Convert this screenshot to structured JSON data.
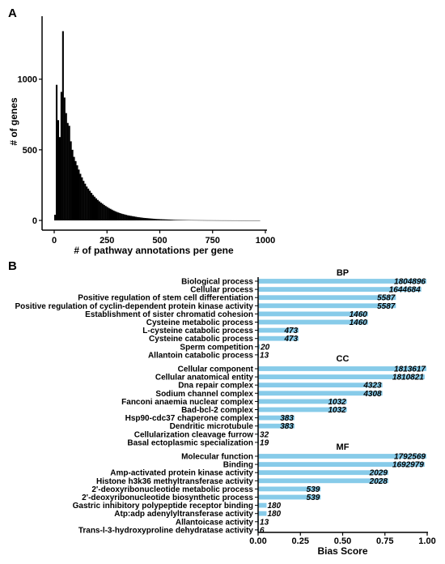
{
  "panels": {
    "a_label": "A",
    "b_label": "B"
  },
  "colors": {
    "hist_bar": "#000000",
    "bias_bar": "#87cbe9",
    "axis": "#000000"
  },
  "chart_data": [
    {
      "type": "bar",
      "subtype": "histogram",
      "title": "",
      "xlabel": "# of pathway annotations per gene",
      "ylabel": "# of genes",
      "xlim": [
        0,
        1000
      ],
      "ylim": [
        0,
        1400
      ],
      "xticks": [
        0,
        250,
        500,
        750,
        1000
      ],
      "yticks": [
        0,
        500,
        1000
      ],
      "bin_width": 7.5,
      "bin_start": 0,
      "values": [
        40,
        960,
        710,
        590,
        910,
        1340,
        870,
        760,
        690,
        670,
        560,
        500,
        450,
        420,
        390,
        360,
        330,
        305,
        280,
        260,
        240,
        225,
        210,
        195,
        180,
        168,
        156,
        145,
        135,
        126,
        118,
        110,
        102,
        95,
        88,
        82,
        76,
        70,
        65,
        60,
        56,
        52,
        48,
        45,
        42,
        39,
        36,
        34,
        32,
        30,
        28,
        26,
        24,
        22.5,
        21,
        19.5,
        18,
        17,
        16,
        15,
        14,
        13,
        12,
        11,
        10,
        9.5,
        9,
        8.5,
        8,
        7.5,
        7,
        6.5,
        6,
        5.5,
        5,
        4.5,
        4,
        3.8,
        3.6,
        3.4,
        3.2,
        3,
        2.8,
        2.6,
        2.4,
        2.2,
        2,
        1.9,
        1.8,
        1.7,
        1.6,
        1.5,
        1.4,
        1.3,
        1.2,
        1.1,
        1,
        1,
        0.9,
        0.9,
        0.8,
        0.8,
        0.7,
        0.7,
        0.6,
        0.6,
        0.5,
        0.5,
        0.5,
        0.4,
        0.4,
        0.4,
        0.3,
        0.3,
        0.3,
        0.3,
        0.2,
        0.2,
        0.2,
        0.2,
        0.2,
        0.1,
        0.1,
        0.1,
        0.1,
        0.1,
        0.1,
        0.1,
        0.1,
        0.1
      ]
    },
    {
      "type": "bar",
      "orientation": "horizontal",
      "title": "",
      "xlabel": "Bias Score",
      "ylabel": "",
      "xlim": [
        0,
        1
      ],
      "xticks": [
        "0.00",
        "0.25",
        "0.50",
        "0.75",
        "1.00"
      ],
      "groups": [
        {
          "name": "BP",
          "categories": [
            "Biological process",
            "Cellular process",
            "Positive regulation of stem cell differentiation",
            "Positive regulation of cyclin-dependent protein kinase activity",
            "Establishment of sister chromatid cohesion",
            "Cysteine metabolic process",
            "L-cysteine catabolic process",
            "Cysteine catabolic process",
            "Sperm competition",
            "Allantoin catabolic process"
          ],
          "values": [
            0.995,
            0.965,
            0.815,
            0.815,
            0.65,
            0.65,
            0.24,
            0.24,
            0.01,
            0.005
          ],
          "labels": [
            "1804896",
            "1644684",
            "5587",
            "5587",
            "1460",
            "1460",
            "473",
            "473",
            "20",
            "13"
          ]
        },
        {
          "name": "CC",
          "categories": [
            "Cellular component",
            "Cellular anatomical entity",
            "Dna repair complex",
            "Sodium channel complex",
            "Fanconi anaemia nuclear complex",
            "Bad-bcl-2 complex",
            "Hsp90-cdc37 chaperone complex",
            "Dendritic microtubule",
            "Cellularization cleavage furrow",
            "Basal ectoplasmic specialization"
          ],
          "values": [
            0.995,
            0.985,
            0.735,
            0.735,
            0.525,
            0.525,
            0.215,
            0.215,
            0.005,
            0.005
          ],
          "labels": [
            "1813617",
            "1810821",
            "4323",
            "4308",
            "1032",
            "1032",
            "383",
            "383",
            "32",
            "19"
          ]
        },
        {
          "name": "MF",
          "categories": [
            "Molecular function",
            "Binding",
            "Amp-activated protein kinase activity",
            "Histone h3k36 methyltransferase activity",
            "2'-deoxyribonucleotide metabolic process",
            "2'-deoxyribonucleotide biosynthetic process",
            "Gastric inhibitory polypeptide receptor binding",
            "Atp:adp adenylyltransferase activity",
            "Allantoicase activity",
            "Trans-l-3-hydroxyproline dehydratase activity"
          ],
          "values": [
            0.995,
            0.985,
            0.77,
            0.77,
            0.37,
            0.37,
            0.05,
            0.05,
            0.005,
            0.005
          ],
          "labels": [
            "1792569",
            "1692979",
            "2029",
            "2028",
            "539",
            "539",
            "180",
            "180",
            "13",
            "6"
          ]
        }
      ]
    }
  ]
}
